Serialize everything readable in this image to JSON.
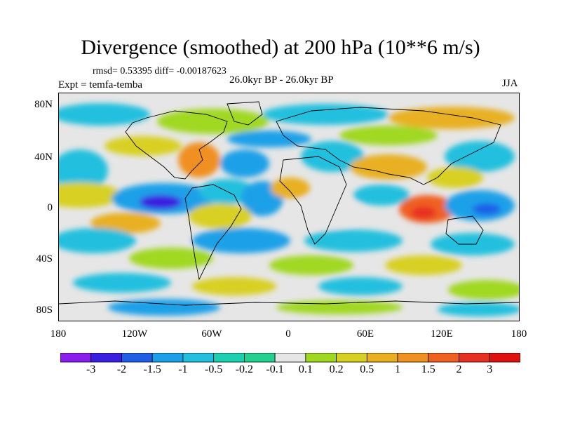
{
  "title": "Divergence (smoothed) at 200 hPa (10**6 m/s)",
  "stats_line": "rmsd= 0.53395 diff= -0.00187623",
  "expt_line": "Expt = temfa-temba",
  "period_line": "26.0kyr BP - 26.0kyr BP",
  "season": "JJA",
  "lat_ticks": [
    "80N",
    "40N",
    "0",
    "40S",
    "80S"
  ],
  "lon_ticks": [
    "180",
    "120W",
    "60W",
    "0",
    "60E",
    "120E",
    "180"
  ],
  "colorbar": {
    "labels": [
      "-3",
      "-2",
      "-1.5",
      "-1",
      "-0.5",
      "-0.2",
      "-0.1",
      "0.1",
      "0.2",
      "0.5",
      "1",
      "1.5",
      "2",
      "3"
    ],
    "colors": [
      "#8a1cf0",
      "#3a1fe0",
      "#1f5fe8",
      "#1aa0e8",
      "#22c0de",
      "#1ad0b0",
      "#22d090",
      "#e6e6e6",
      "#a0d820",
      "#d8d020",
      "#e8b020",
      "#f09020",
      "#f06020",
      "#e83020",
      "#e01010"
    ]
  },
  "map_colors": {
    "background": "#e6e6e6",
    "coast": "#000000"
  }
}
